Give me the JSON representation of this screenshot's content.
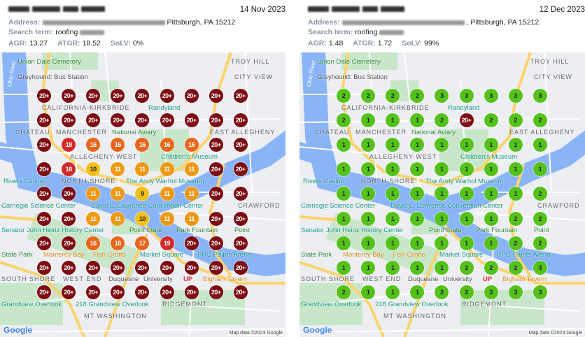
{
  "colors": {
    "r20": "#7d0a12",
    "r18": "#d42a2a",
    "r16": "#e8661a",
    "r11": "#ef9812",
    "r9": "#f3c019",
    "green": "#55c21b",
    "river": "#8ab4f8",
    "road": "#fbd36b"
  },
  "map": {
    "labels": {
      "union_dale": "Union Dale Cemetery",
      "troy_hill": "TROY HILL",
      "city_view": "CITY VIEW",
      "ohio_river": "Ohio River",
      "california": "CALIFORNIA-KIRKBRIDE",
      "randyland": "Randyland",
      "chateau": "CHATEAU",
      "manchester": "MANCHESTER",
      "east_allegheny": "EAST ALLEGHENY",
      "aviary": "National Aviary",
      "childrens": "Children's Museum",
      "allegheny_west": "ALLEGHENY-WEST",
      "rivers_casino": "Rivers Casino",
      "warhol": "The Andy Warhol Museum",
      "heinz": "Senator John Heinz History Center",
      "north_shore": "NORTH SHORE",
      "carnegie": "Carnegie Science Center",
      "convention": "David L. Lawrence Convention Center",
      "fountain_1": "Point State",
      "fountain_2": "Park Fountain",
      "greyhound": "Greyhound: Bus Station",
      "crawford": "CRAWFORD",
      "psp_1": "Point",
      "psp_2": "State Park",
      "market_square": "Market Square",
      "ppg": "PPG Paints Arena",
      "monterey_1": "Monterey Bay",
      "monterey_2": "Fish Grotto",
      "south_shore": "SOUTH SHORE",
      "west_end": "WEST END",
      "duquesne_1": "Duquesne",
      "duquesne_2": "University",
      "grandview": "Grandview Overlook",
      "overlook218": "218 Grandview Overlook",
      "bigham": "Bigham Tavern",
      "ridgemont": "RIDGEMONT",
      "mt_washington": "MT WASHINGTON",
      "up": "UP"
    },
    "google": "Google",
    "attribution": "Map data ©2023 Google"
  },
  "reports": [
    {
      "date": "14 Nov 2023",
      "address_label": "Address:",
      "address_visible": "Pittsburgh, PA 15212",
      "search_label": "Search term:",
      "search_visible": "roofing",
      "agr_label": "AGR:",
      "agr": "13.27",
      "atgr_label": "ATGR:",
      "atgr": "18.52",
      "solv_label": "SoLV:",
      "solv": "0%",
      "grid": [
        [
          "20+",
          "20+",
          "20+",
          "20+",
          "20+",
          "20+",
          "20+",
          "20+",
          "20+"
        ],
        [
          "20+",
          "20+",
          "20+",
          "20+",
          "20+",
          "20+",
          "20+",
          "20+",
          "20+"
        ],
        [
          "20+",
          "18",
          "16",
          "16",
          "16",
          "16",
          "16",
          "20+",
          "20+"
        ],
        [
          "20+",
          "18",
          "10",
          "11",
          "11",
          "11",
          "11",
          "20+",
          "20+"
        ],
        [
          "20+",
          "20+",
          "11",
          "11",
          "9",
          "11",
          "11",
          "20+",
          "20+"
        ],
        [
          "20+",
          "20+",
          "11",
          "11",
          "10",
          "11",
          "11",
          "20+",
          "20+"
        ],
        [
          "20+",
          "20+",
          "16",
          "16",
          "17",
          "19",
          "20+",
          "20+",
          "20+"
        ],
        [
          "20+",
          "20+",
          "20+",
          "20+",
          "20+",
          "20+",
          "20+",
          "20+",
          "20+"
        ],
        [
          "20+",
          "20+",
          "20+",
          "20+",
          "20+",
          "20+",
          "20+",
          "20+",
          "20+"
        ]
      ]
    },
    {
      "date": "12 Dec 2023",
      "address_label": "Address:",
      "address_visible": ", Pittsburgh, PA 15212",
      "search_label": "Search term:",
      "search_visible": "roofing",
      "agr_label": "AGR:",
      "agr": "1.48",
      "atgr_label": "ATGR:",
      "atgr": "1.72",
      "solv_label": "SoLV:",
      "solv": "99%",
      "grid": [
        [
          "2",
          "2",
          "2",
          "2",
          "3",
          "3",
          "3",
          "3",
          "3"
        ],
        [
          "2",
          "1",
          "1",
          "1",
          "2",
          "20+",
          "2",
          "2",
          "2"
        ],
        [
          "1",
          "1",
          "1",
          "1",
          "1",
          "1",
          "1",
          "1",
          "1"
        ],
        [
          "1",
          "1",
          "1",
          "1",
          "1",
          "1",
          "1",
          "1",
          "1"
        ],
        [
          "1",
          "1",
          "1",
          "1",
          "1",
          "1",
          "1",
          "1",
          "2"
        ],
        [
          "1",
          "1",
          "1",
          "1",
          "1",
          "1",
          "1",
          "2",
          "2"
        ],
        [
          "1",
          "1",
          "1",
          "1",
          "1",
          "1",
          "1",
          "2",
          "2"
        ],
        [
          "1",
          "1",
          "1",
          "1",
          "1",
          "2",
          "2",
          "2",
          "3"
        ],
        [
          "2",
          "1",
          "1",
          "1",
          "2",
          "2",
          "3",
          "3",
          "3"
        ]
      ]
    }
  ]
}
